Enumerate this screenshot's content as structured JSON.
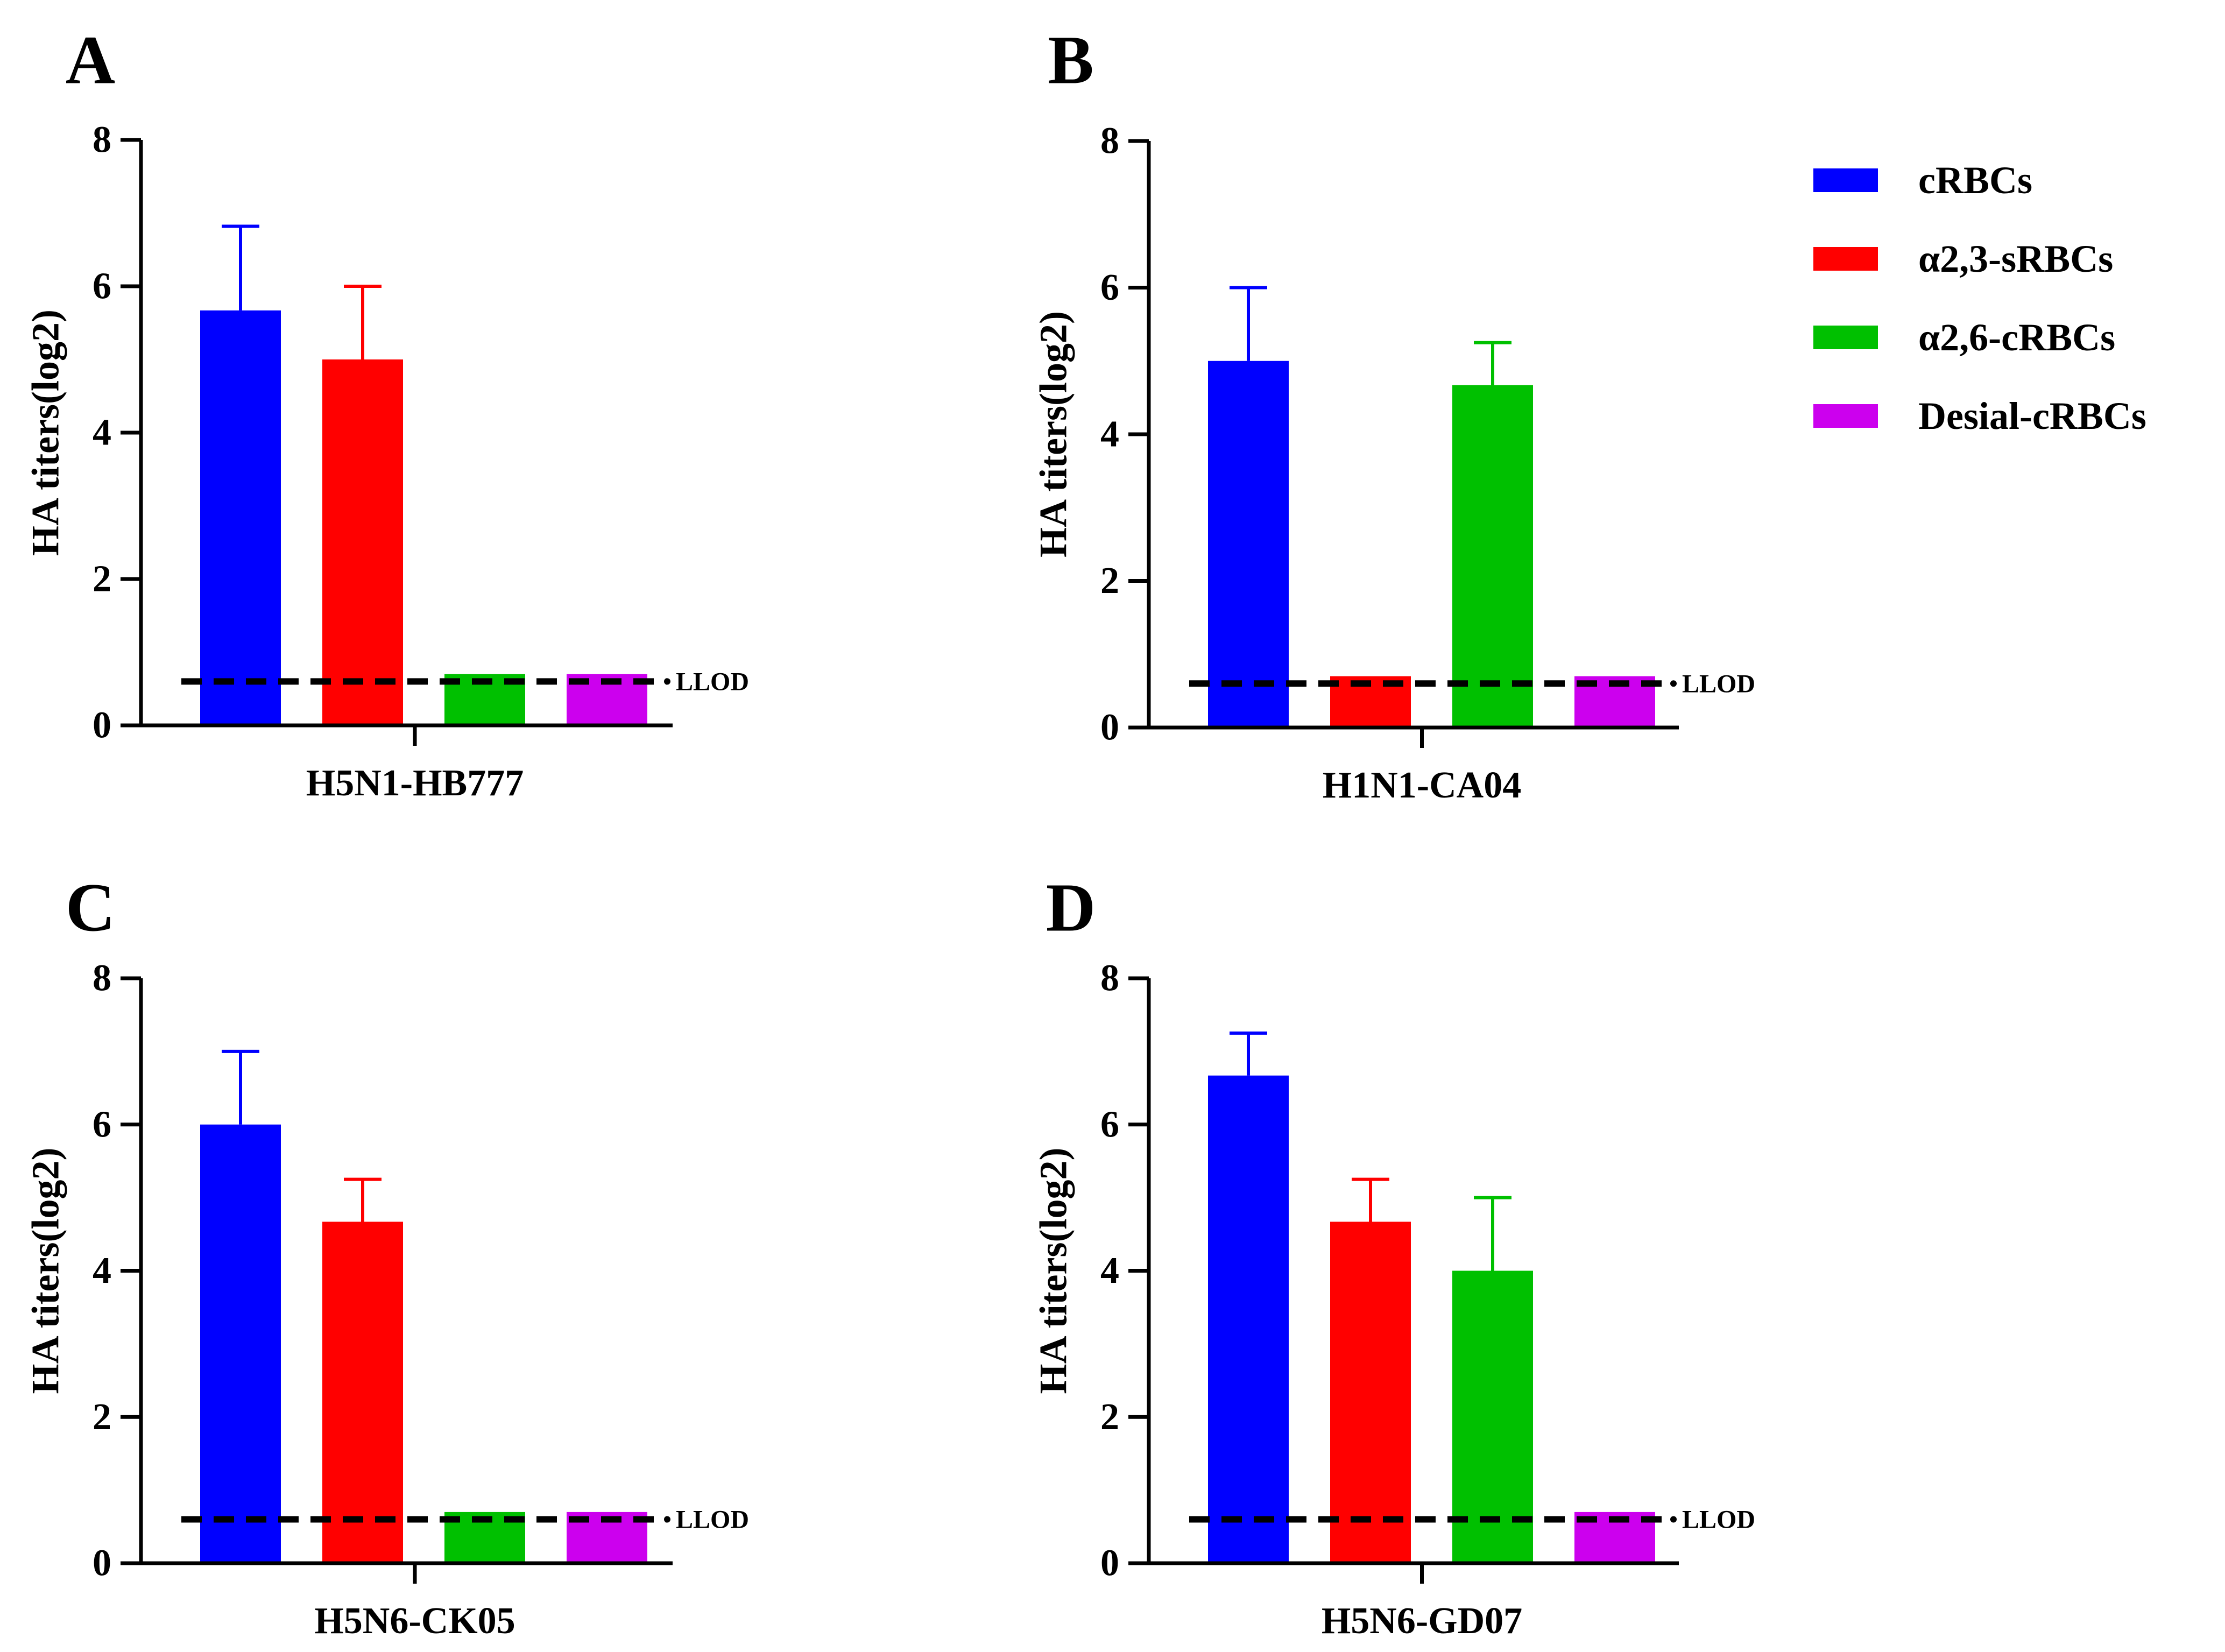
{
  "chart_data": [
    {
      "type": "bar",
      "panel_label": "A",
      "title": "",
      "xlabel": "",
      "category_label": "H5N1-HB777",
      "ylabel": "HA titers(log2)",
      "ylim": [
        0,
        8
      ],
      "yticks": [
        "0",
        "2",
        "4",
        "6",
        "8"
      ],
      "llod_value": 0.6,
      "llod_label": "LLOD",
      "series": [
        {
          "name": "cRBCs",
          "value": 5.67,
          "error": 1.15
        },
        {
          "name": "α2,3-sRBCs",
          "value": 5.0,
          "error": 1.0
        },
        {
          "name": "α2,6-cRBCs",
          "value": 0.7,
          "error": 0
        },
        {
          "name": "Desial-cRBCs",
          "value": 0.7,
          "error": 0
        }
      ]
    },
    {
      "type": "bar",
      "panel_label": "B",
      "title": "",
      "xlabel": "",
      "category_label": "H1N1-CA04",
      "ylabel": "HA titers(log2)",
      "ylim": [
        0,
        8
      ],
      "yticks": [
        "0",
        "2",
        "4",
        "6",
        "8"
      ],
      "llod_value": 0.6,
      "llod_label": "LLOD",
      "series": [
        {
          "name": "cRBCs",
          "value": 5.0,
          "error": 1.0
        },
        {
          "name": "α2,3-sRBCs",
          "value": 0.7,
          "error": 0
        },
        {
          "name": "α2,6-cRBCs",
          "value": 4.67,
          "error": 0.58
        },
        {
          "name": "Desial-cRBCs",
          "value": 0.7,
          "error": 0
        }
      ]
    },
    {
      "type": "bar",
      "panel_label": "C",
      "title": "",
      "xlabel": "",
      "category_label": "H5N6-CK05",
      "ylabel": "HA titers(log2)",
      "ylim": [
        0,
        8
      ],
      "yticks": [
        "0",
        "2",
        "4",
        "6",
        "8"
      ],
      "llod_value": 0.6,
      "llod_label": "LLOD",
      "series": [
        {
          "name": "cRBCs",
          "value": 6.0,
          "error": 1.0
        },
        {
          "name": "α2,3-sRBCs",
          "value": 4.67,
          "error": 0.58
        },
        {
          "name": "α2,6-cRBCs",
          "value": 0.7,
          "error": 0
        },
        {
          "name": "Desial-cRBCs",
          "value": 0.7,
          "error": 0
        }
      ]
    },
    {
      "type": "bar",
      "panel_label": "D",
      "title": "",
      "xlabel": "",
      "category_label": "H5N6-GD07",
      "ylabel": "HA titers(log2)",
      "ylim": [
        0,
        8
      ],
      "yticks": [
        "0",
        "2",
        "4",
        "6",
        "8"
      ],
      "llod_value": 0.6,
      "llod_label": "LLOD",
      "series": [
        {
          "name": "cRBCs",
          "value": 6.67,
          "error": 0.58
        },
        {
          "name": "α2,3-sRBCs",
          "value": 4.67,
          "error": 0.58
        },
        {
          "name": "α2,6-cRBCs",
          "value": 4.0,
          "error": 1.0
        },
        {
          "name": "Desial-cRBCs",
          "value": 0.7,
          "error": 0
        }
      ]
    }
  ],
  "legend": {
    "placement": "top-right",
    "items": [
      {
        "label": "cRBCs",
        "color": "#0000ff"
      },
      {
        "label": "α2,3-sRBCs",
        "color": "#ff0000"
      },
      {
        "label": "α2,6-cRBCs",
        "color": "#00c000"
      },
      {
        "label": "Desial-cRBCs",
        "color": "#cc00ee"
      }
    ]
  }
}
